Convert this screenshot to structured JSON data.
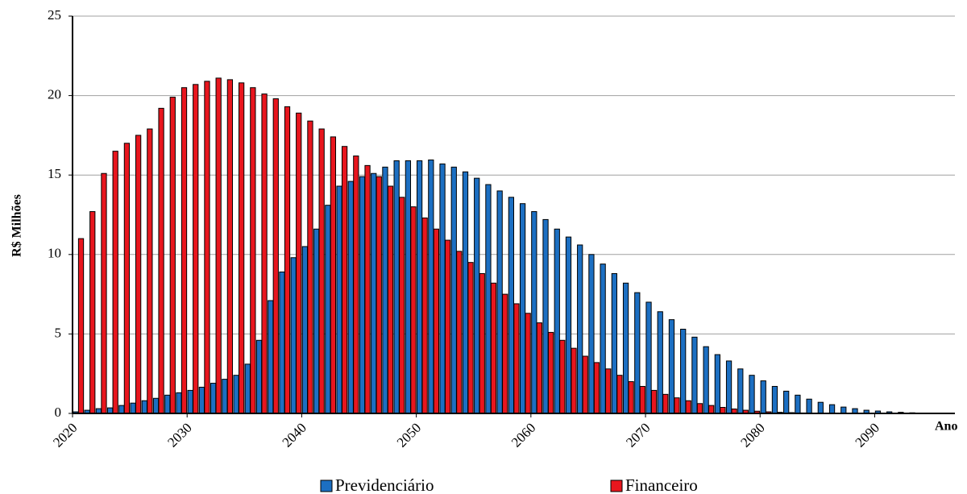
{
  "chart_data": {
    "type": "bar",
    "y_label": "R$ Milhões",
    "x_label": "Ano",
    "x": [
      2021,
      2022,
      2023,
      2024,
      2025,
      2026,
      2027,
      2028,
      2029,
      2030,
      2031,
      2032,
      2033,
      2034,
      2035,
      2036,
      2037,
      2038,
      2039,
      2040,
      2041,
      2042,
      2043,
      2044,
      2045,
      2046,
      2047,
      2048,
      2049,
      2050,
      2051,
      2052,
      2053,
      2054,
      2055,
      2056,
      2057,
      2058,
      2059,
      2060,
      2061,
      2062,
      2063,
      2064,
      2065,
      2066,
      2067,
      2068,
      2069,
      2070,
      2071,
      2072,
      2073,
      2074,
      2075,
      2076,
      2077,
      2078,
      2079,
      2080,
      2081,
      2082,
      2083,
      2084,
      2085,
      2086,
      2087,
      2088,
      2089,
      2090,
      2091,
      2092,
      2093,
      2094,
      2095,
      2096
    ],
    "series": [
      {
        "name": "Previdenciário",
        "color": "#1c6fc2",
        "values": [
          0.1,
          0.2,
          0.3,
          0.35,
          0.5,
          0.65,
          0.8,
          0.95,
          1.15,
          1.3,
          1.45,
          1.65,
          1.9,
          2.15,
          2.4,
          3.1,
          4.6,
          7.1,
          8.9,
          9.8,
          10.5,
          11.6,
          13.1,
          14.3,
          14.6,
          14.9,
          15.1,
          15.5,
          15.9,
          15.9,
          15.9,
          15.95,
          15.7,
          15.5,
          15.2,
          14.8,
          14.4,
          14.0,
          13.6,
          13.2,
          12.7,
          12.2,
          11.6,
          11.1,
          10.6,
          10.0,
          9.4,
          8.8,
          8.2,
          7.6,
          7.0,
          6.4,
          5.9,
          5.3,
          4.8,
          4.2,
          3.7,
          3.3,
          2.8,
          2.4,
          2.05,
          1.7,
          1.4,
          1.15,
          0.9,
          0.7,
          0.55,
          0.4,
          0.3,
          0.2,
          0.15,
          0.1,
          0.07,
          0.04,
          0.02,
          0.01
        ]
      },
      {
        "name": "Financeiro",
        "color": "#e8161e",
        "values": [
          11.0,
          12.7,
          15.1,
          16.5,
          17.0,
          17.5,
          17.9,
          19.2,
          19.9,
          20.5,
          20.7,
          20.9,
          21.1,
          21.0,
          20.8,
          20.5,
          20.1,
          19.8,
          19.3,
          18.9,
          18.4,
          17.9,
          17.4,
          16.8,
          16.2,
          15.6,
          14.9,
          14.3,
          13.6,
          13.0,
          12.3,
          11.6,
          10.9,
          10.2,
          9.5,
          8.8,
          8.2,
          7.5,
          6.9,
          6.3,
          5.7,
          5.1,
          4.6,
          4.1,
          3.6,
          3.2,
          2.8,
          2.4,
          2.0,
          1.7,
          1.45,
          1.2,
          0.98,
          0.8,
          0.62,
          0.5,
          0.38,
          0.28,
          0.2,
          0.14,
          0.1,
          0.07,
          0.05,
          0.03,
          0.02,
          0.01,
          0.01,
          0,
          0,
          0,
          0,
          0,
          0,
          0,
          0,
          0
        ]
      }
    ],
    "xlim": [
      2020,
      2097
    ],
    "xticks": [
      2020,
      2030,
      2040,
      2050,
      2060,
      2070,
      2080,
      2090
    ],
    "ylim": [
      0,
      25
    ],
    "yticks": [
      0,
      5,
      10,
      15,
      20,
      25
    ],
    "grid": true
  }
}
